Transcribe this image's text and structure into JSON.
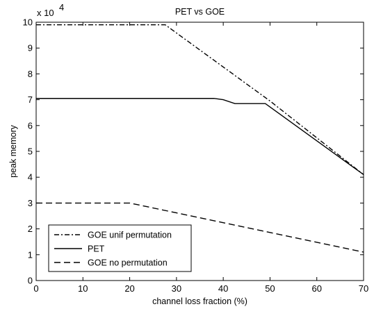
{
  "chart_data": {
    "type": "line",
    "title": "PET vs GOE",
    "xlabel": "channel loss fraction (%)",
    "ylabel": "peak memory",
    "y_multiplier_base": "x 10",
    "y_multiplier_exponent": "4",
    "xlim": [
      0,
      70
    ],
    "ylim": [
      0,
      10
    ],
    "x_ticks": [
      0,
      10,
      20,
      30,
      40,
      50,
      60,
      70
    ],
    "x_tick_labels": [
      "0",
      "10",
      "20",
      "30",
      "40",
      "50",
      "60",
      "70"
    ],
    "y_ticks": [
      0,
      1,
      2,
      3,
      4,
      5,
      6,
      7,
      8,
      9,
      10
    ],
    "y_tick_labels": [
      "0",
      "1",
      "2",
      "3",
      "4",
      "5",
      "6",
      "7",
      "8",
      "9",
      "10"
    ],
    "grid": false,
    "legend_position": "bottom-left",
    "series": [
      {
        "name": "GOE unif permutation",
        "style": "dash-dot",
        "color": "#000000",
        "x": [
          0,
          27.6,
          50,
          70
        ],
        "y": [
          9.9,
          9.9,
          6.95,
          4.1
        ]
      },
      {
        "name": "PET",
        "style": "solid",
        "color": "#000000",
        "x": [
          0,
          38,
          40,
          42.5,
          49,
          70
        ],
        "y": [
          7.05,
          7.05,
          7.0,
          6.85,
          6.85,
          4.1
        ]
      },
      {
        "name": "GOE no permutation",
        "style": "dashed",
        "color": "#000000",
        "x": [
          0,
          20,
          70
        ],
        "y": [
          3.0,
          3.0,
          1.1
        ]
      }
    ]
  }
}
